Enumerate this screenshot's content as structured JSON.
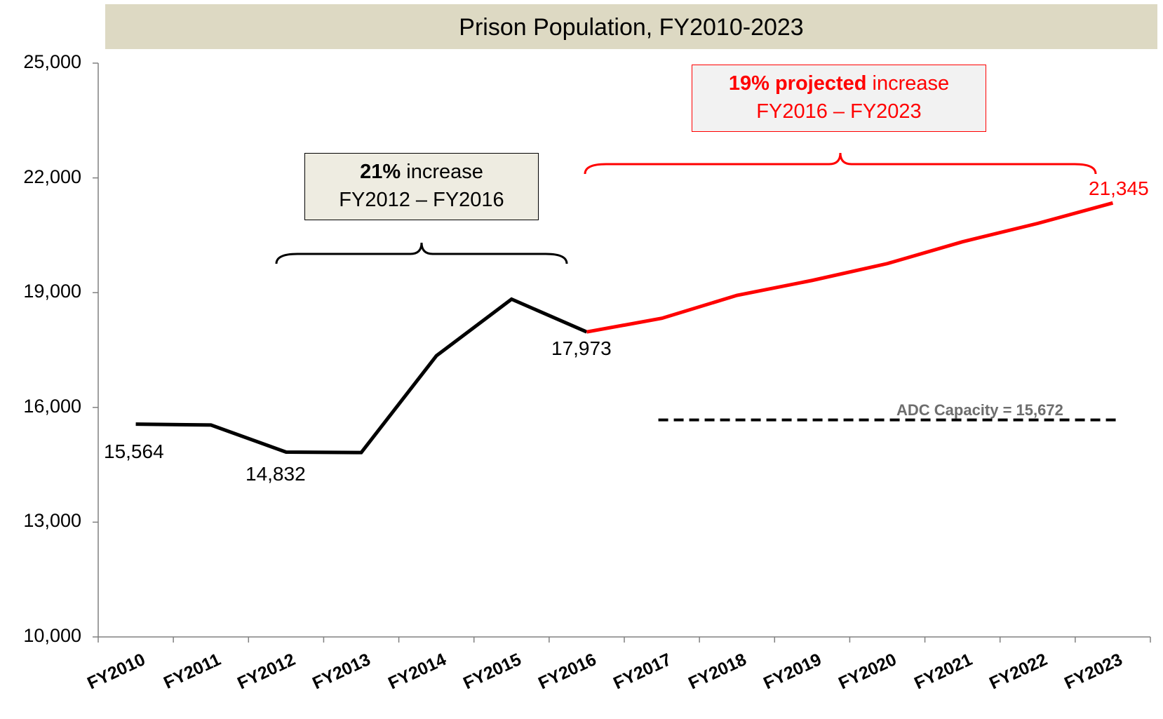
{
  "chart_data": {
    "type": "line",
    "title": "Prison Population, FY2010-2023",
    "categories": [
      "FY2010",
      "FY2011",
      "FY2012",
      "FY2013",
      "FY2014",
      "FY2015",
      "FY2016",
      "FY2017",
      "FY2018",
      "FY2019",
      "FY2020",
      "FY2021",
      "FY2022",
      "FY2023"
    ],
    "ylim": [
      10000,
      25000
    ],
    "yticks": [
      "10,000",
      "13,000",
      "16,000",
      "19,000",
      "22,000",
      "25,000"
    ],
    "grid": false,
    "series": [
      {
        "values": [
          15564,
          15540,
          14832,
          14820,
          17350,
          18830,
          17973,
          null,
          null,
          null,
          null,
          null,
          null,
          null
        ],
        "color": "#000000"
      },
      {
        "values": [
          null,
          null,
          null,
          null,
          null,
          null,
          17973,
          18330,
          18930,
          19320,
          19760,
          20330,
          20810,
          21345
        ],
        "color": "#ff0000"
      }
    ],
    "reference_line": {
      "value": 15672,
      "label": "ADC Capacity = 15,672",
      "from": "FY2017",
      "to": "FY2023",
      "color": "#000000"
    },
    "data_labels": [
      {
        "text": "15,564",
        "color": "#000000"
      },
      {
        "text": "14,832",
        "color": "#000000"
      },
      {
        "text": "17,973",
        "color": "#000000"
      },
      {
        "text": "21,345",
        "color": "#ff0000"
      }
    ],
    "annotations": [
      {
        "bold": "21%",
        "rest": " increase",
        "line2": "FY2012 – FY2016",
        "color": "#000000"
      },
      {
        "bold": "19% projected",
        "rest": " increase",
        "line2": "FY2016 – FY2023",
        "color": "#ff0000"
      }
    ]
  }
}
